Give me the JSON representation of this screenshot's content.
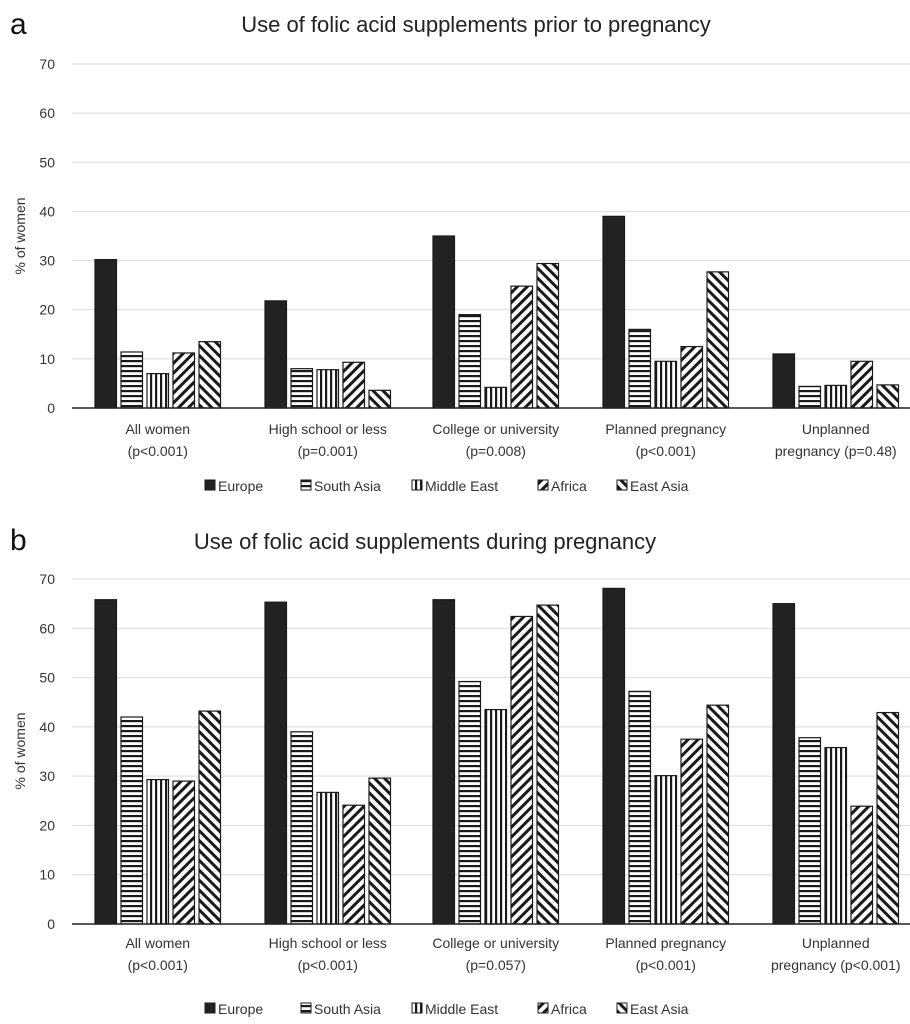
{
  "chart_data": [
    {
      "type": "bar",
      "panel": "a",
      "title": "Use of folic acid supplements prior to pregnancy",
      "ylabel": "% of women",
      "ylim": [
        0,
        70
      ],
      "yticks": [
        0,
        10,
        20,
        30,
        40,
        50,
        60,
        70
      ],
      "grid": true,
      "legend_position": "bottom",
      "categories": [
        [
          "All women",
          "(p<0.001)"
        ],
        [
          "High school or less",
          "(p=0.001)"
        ],
        [
          "College or university",
          "(p=0.008)"
        ],
        [
          "Planned pregnancy",
          "(p<0.001)"
        ],
        [
          "Unplanned",
          "pregnancy (p=0.48)"
        ]
      ],
      "series": [
        {
          "name": "Europe",
          "values": [
            30.2,
            21.8,
            35.0,
            39.0,
            11.0
          ]
        },
        {
          "name": "South Asia",
          "values": [
            11.4,
            8.0,
            19.0,
            16.0,
            4.4
          ]
        },
        {
          "name": "Middle East",
          "values": [
            7.0,
            7.8,
            4.2,
            9.5,
            4.6
          ]
        },
        {
          "name": "Africa",
          "values": [
            11.2,
            9.3,
            24.8,
            12.5,
            9.5
          ]
        },
        {
          "name": "East Asia",
          "values": [
            13.5,
            3.6,
            29.4,
            27.7,
            4.7
          ]
        }
      ]
    },
    {
      "type": "bar",
      "panel": "b",
      "title": "Use of folic acid supplements during pregnancy",
      "ylabel": "% of women",
      "ylim": [
        0,
        70
      ],
      "yticks": [
        0,
        10,
        20,
        30,
        40,
        50,
        60,
        70
      ],
      "grid": true,
      "legend_position": "bottom",
      "categories": [
        [
          "All women",
          "(p<0.001)"
        ],
        [
          "High school or less",
          "(p<0.001)"
        ],
        [
          "College or university",
          "(p=0.057)"
        ],
        [
          "Planned pregnancy",
          "(p<0.001)"
        ],
        [
          "Unplanned",
          "pregnancy (p<0.001)"
        ]
      ],
      "series": [
        {
          "name": "Europe",
          "values": [
            65.8,
            65.3,
            65.8,
            68.1,
            65.0
          ]
        },
        {
          "name": "South Asia",
          "values": [
            42.0,
            39.0,
            49.2,
            47.2,
            37.8
          ]
        },
        {
          "name": "Middle East",
          "values": [
            29.3,
            26.7,
            43.5,
            30.1,
            35.8
          ]
        },
        {
          "name": "Africa",
          "values": [
            29.0,
            24.1,
            62.4,
            37.5,
            23.9
          ]
        },
        {
          "name": "East Asia",
          "values": [
            43.2,
            29.6,
            64.7,
            44.4,
            42.9
          ]
        }
      ]
    }
  ],
  "series_styles": [
    {
      "name": "Europe",
      "pattern": "solid"
    },
    {
      "name": "South Asia",
      "pattern": "horizontal-lines"
    },
    {
      "name": "Middle East",
      "pattern": "vertical-lines"
    },
    {
      "name": "Africa",
      "pattern": "diagonal-down"
    },
    {
      "name": "East Asia",
      "pattern": "diagonal-up"
    }
  ],
  "colors": {
    "europe": "#222222",
    "pattern": "#1a1a1a",
    "grid": "#d9d9d9",
    "axis": "#222222"
  }
}
